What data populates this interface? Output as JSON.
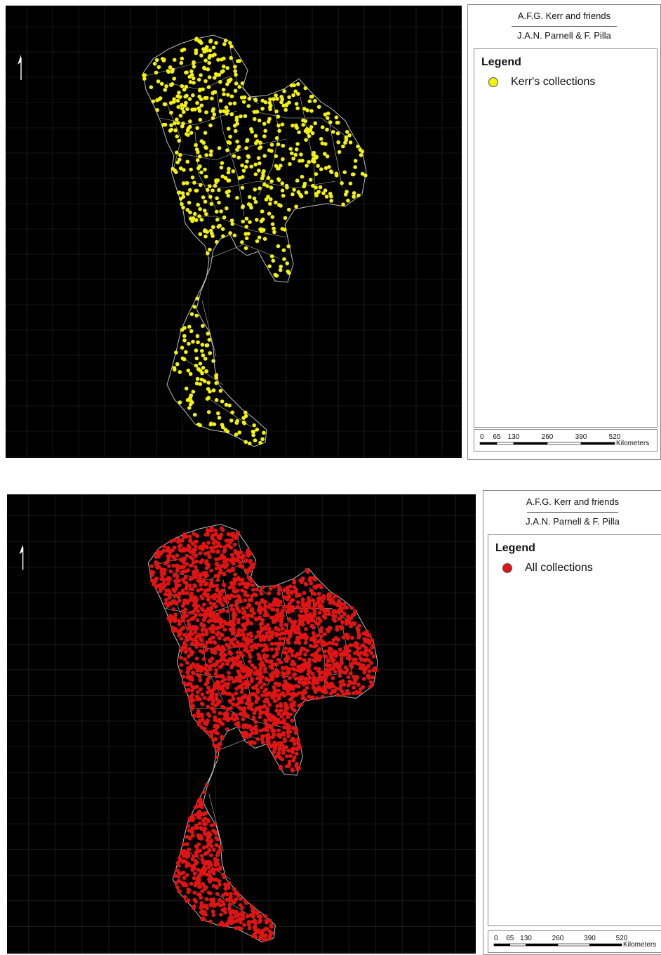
{
  "figures": [
    {
      "credit_line1": "A.F.G. Kerr and friends",
      "credit_line2": "J.A.N. Parnell & F. Pilla",
      "legend_title": "Legend",
      "legend_label": "Kerr's collections",
      "point_color": "#f2f20a",
      "point_count": 720,
      "scale_ticks": [
        "0",
        "65",
        "130",
        "260",
        "390",
        "520"
      ],
      "scale_unit": "Kilometers"
    },
    {
      "credit_line1": "A.F.G. Kerr and friends",
      "credit_line2": "J.A.N. Parnell & F. Pilla",
      "legend_title": "Legend",
      "legend_label": "All collections",
      "point_color": "#e01414",
      "point_count": 2600,
      "scale_ticks": [
        "0",
        "65",
        "130",
        "260",
        "390",
        "520"
      ],
      "scale_unit": "Kilometers"
    }
  ],
  "colors": {
    "map_background": "#000000",
    "boundary": "#bdbdbd",
    "grid": "#2a2a2a"
  },
  "icons": [
    "north-arrow-icon"
  ]
}
